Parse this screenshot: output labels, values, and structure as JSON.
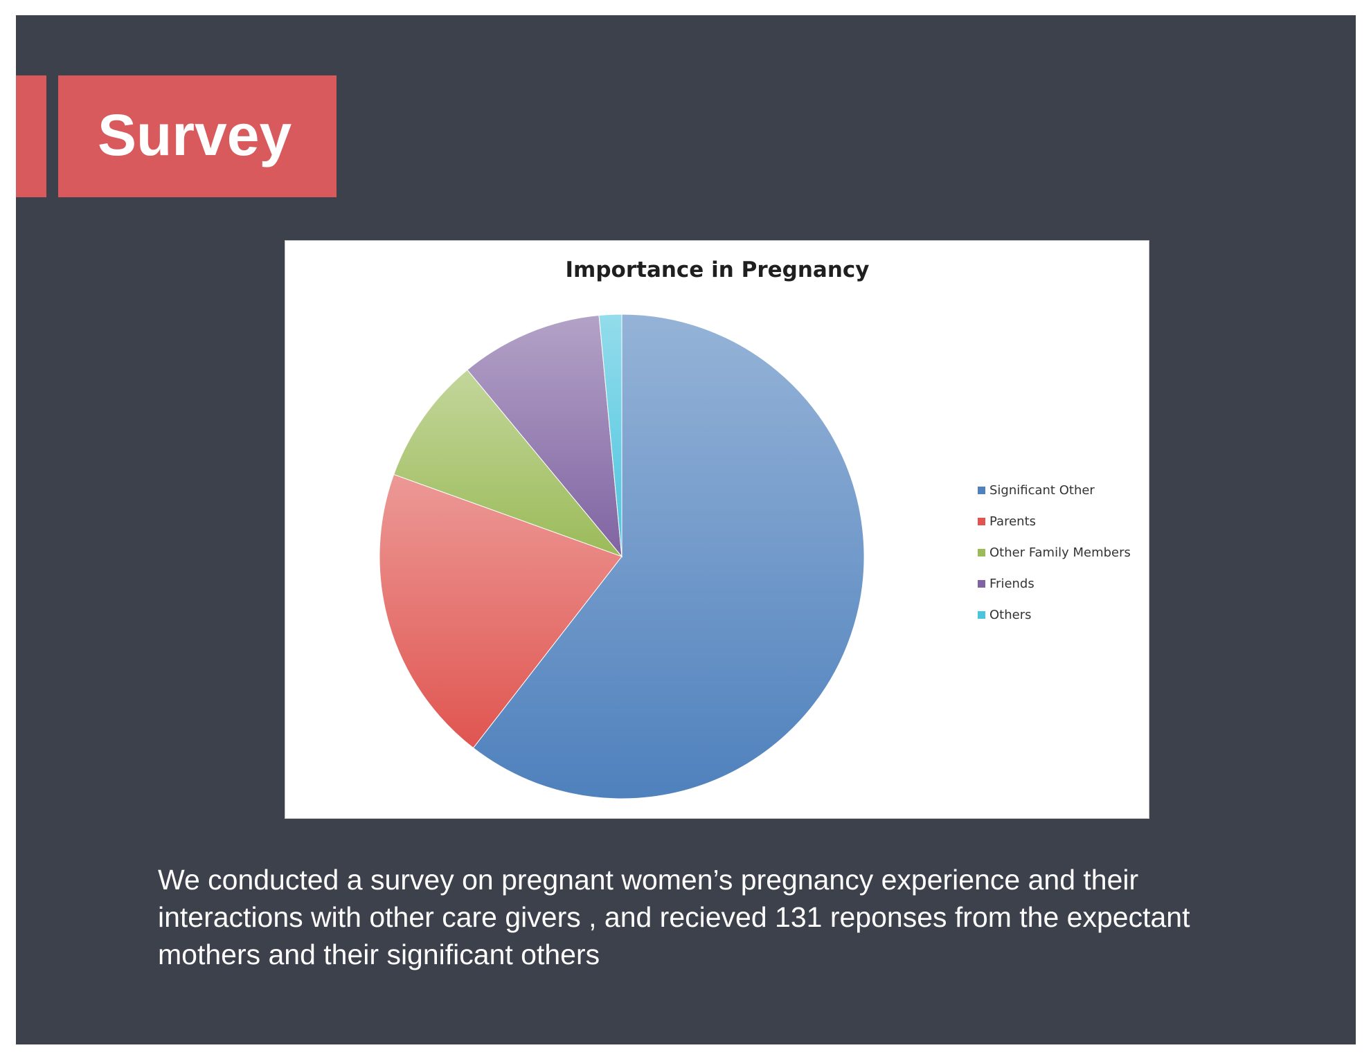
{
  "slide": {
    "title": "Survey",
    "caption": "We conducted a survey on  pregnant women’s pregnancy experience and their interactions with other care givers , and recieved 131 reponses from the expectant mothers and their significant others"
  },
  "colors": {
    "background": "#3d414b",
    "accent": "#d85a5c",
    "text": "#ffffff"
  },
  "chart_data": {
    "type": "pie",
    "title": "Importance in Pregnancy",
    "legend_position": "right",
    "slices": [
      {
        "label": "Significant Other",
        "value": 60.5,
        "color": "#4f81bd"
      },
      {
        "label": "Parents",
        "value": 20.0,
        "color": "#e05550"
      },
      {
        "label": "Other Family Members",
        "value": 8.5,
        "color": "#9bbb59"
      },
      {
        "label": "Friends",
        "value": 9.5,
        "color": "#8064a2"
      },
      {
        "label": "Others",
        "value": 1.5,
        "color": "#4bc4de"
      }
    ]
  }
}
